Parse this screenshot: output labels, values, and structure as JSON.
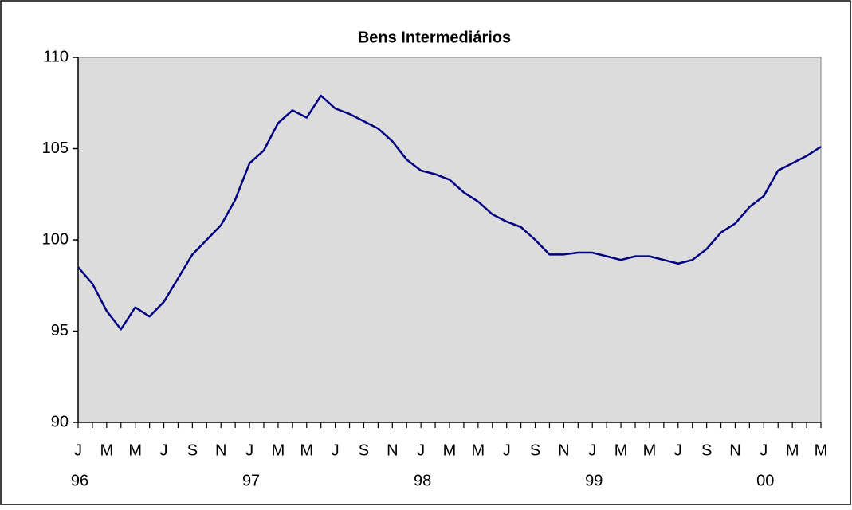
{
  "chart_data": {
    "type": "line",
    "title": "Bens Intermediários",
    "categories": [
      "J",
      null,
      "M",
      null,
      "M",
      null,
      "J",
      null,
      "S",
      null,
      "N",
      null,
      "J",
      null,
      "M",
      null,
      "M",
      null,
      "J",
      null,
      "S",
      null,
      "N",
      null,
      "J",
      null,
      "M",
      null,
      "M",
      null,
      "J",
      null,
      "S",
      null,
      "N",
      null,
      "J",
      null,
      "M",
      null,
      "M",
      null,
      "J",
      null,
      "S",
      null,
      "N",
      null,
      "J",
      null,
      "M",
      null,
      "M"
    ],
    "category_years": [
      "96",
      null,
      null,
      null,
      null,
      null,
      null,
      null,
      null,
      null,
      null,
      null,
      "97",
      null,
      null,
      null,
      null,
      null,
      null,
      null,
      null,
      null,
      null,
      null,
      "98",
      null,
      null,
      null,
      null,
      null,
      null,
      null,
      null,
      null,
      null,
      null,
      "99",
      null,
      null,
      null,
      null,
      null,
      null,
      null,
      null,
      null,
      null,
      null,
      "00",
      null,
      null,
      null,
      null
    ],
    "series": [
      {
        "name": "Bens Intermediários",
        "color": "#000080",
        "values": [
          98.5,
          97.6,
          96.1,
          95.1,
          96.3,
          95.8,
          96.6,
          97.9,
          99.2,
          100.0,
          100.8,
          102.2,
          104.2,
          104.9,
          106.4,
          107.1,
          106.7,
          107.9,
          107.2,
          106.9,
          106.5,
          106.1,
          105.4,
          104.4,
          103.8,
          103.6,
          103.3,
          102.6,
          102.1,
          101.4,
          101.0,
          100.7,
          100.0,
          99.2,
          99.2,
          99.3,
          99.3,
          99.1,
          98.9,
          99.1,
          99.1,
          98.9,
          98.7,
          98.9,
          99.5,
          100.4,
          100.9,
          101.8,
          102.4,
          103.8,
          104.2,
          104.6,
          105.1
        ]
      }
    ],
    "ylim": [
      90,
      110
    ],
    "yticks": [
      90,
      95,
      100,
      105,
      110
    ],
    "grid": false,
    "plot_background": "#dcdcdc"
  }
}
